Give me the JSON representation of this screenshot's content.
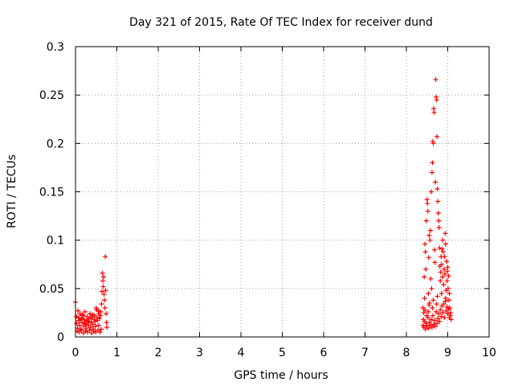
{
  "chart_data": {
    "type": "scatter",
    "title": "Day 321 of 2015, Rate Of TEC Index for receiver dund",
    "xlabel": "GPS time / hours",
    "ylabel": "ROTI / TECUs",
    "xlim": [
      0,
      10
    ],
    "ylim": [
      0,
      0.3
    ],
    "x_ticks": [
      0,
      1,
      2,
      3,
      4,
      5,
      6,
      7,
      8,
      9,
      10
    ],
    "x_tick_labels": [
      "0",
      "1",
      "2",
      "3",
      "4",
      "5",
      "6",
      "7",
      "8",
      "9",
      "10"
    ],
    "y_ticks": [
      0,
      0.05,
      0.1,
      0.15,
      0.2,
      0.25,
      0.3
    ],
    "y_tick_labels": [
      "0",
      "0.05",
      "0.1",
      "0.15",
      "0.2",
      "0.25",
      "0.3"
    ],
    "grid": true,
    "marker": "+",
    "color": "#ff0000",
    "series": [
      {
        "name": "ROTI",
        "points": [
          [
            0.0,
            0.036
          ],
          [
            0.02,
            0.021
          ],
          [
            0.03,
            0.014
          ],
          [
            0.05,
            0.009
          ],
          [
            0.06,
            0.027
          ],
          [
            0.08,
            0.017
          ],
          [
            0.1,
            0.012
          ],
          [
            0.11,
            0.024
          ],
          [
            0.13,
            0.008
          ],
          [
            0.15,
            0.019
          ],
          [
            0.16,
            0.015
          ],
          [
            0.18,
            0.022
          ],
          [
            0.2,
            0.011
          ],
          [
            0.21,
            0.018
          ],
          [
            0.23,
            0.026
          ],
          [
            0.25,
            0.013
          ],
          [
            0.26,
            0.009
          ],
          [
            0.28,
            0.021
          ],
          [
            0.3,
            0.016
          ],
          [
            0.31,
            0.012
          ],
          [
            0.33,
            0.019
          ],
          [
            0.35,
            0.024
          ],
          [
            0.36,
            0.01
          ],
          [
            0.38,
            0.015
          ],
          [
            0.4,
            0.02
          ],
          [
            0.41,
            0.013
          ],
          [
            0.43,
            0.008
          ],
          [
            0.45,
            0.018
          ],
          [
            0.46,
            0.022
          ],
          [
            0.48,
            0.011
          ],
          [
            0.5,
            0.03
          ],
          [
            0.51,
            0.028
          ],
          [
            0.53,
            0.017
          ],
          [
            0.55,
            0.027
          ],
          [
            0.56,
            0.012
          ],
          [
            0.58,
            0.019
          ],
          [
            0.6,
            0.022
          ],
          [
            0.61,
            0.026
          ],
          [
            0.63,
            0.034
          ],
          [
            0.64,
            0.047
          ],
          [
            0.65,
            0.066
          ],
          [
            0.66,
            0.058
          ],
          [
            0.67,
            0.052
          ],
          [
            0.68,
            0.062
          ],
          [
            0.69,
            0.044
          ],
          [
            0.7,
            0.038
          ],
          [
            0.71,
            0.03
          ],
          [
            0.72,
            0.083
          ],
          [
            0.73,
            0.048
          ],
          [
            0.74,
            0.024
          ],
          [
            0.75,
            0.015
          ],
          [
            0.76,
            0.01
          ],
          [
            0.04,
            0.006
          ],
          [
            0.09,
            0.005
          ],
          [
            0.14,
            0.007
          ],
          [
            0.19,
            0.004
          ],
          [
            0.24,
            0.006
          ],
          [
            0.29,
            0.005
          ],
          [
            0.34,
            0.007
          ],
          [
            0.39,
            0.004
          ],
          [
            0.44,
            0.006
          ],
          [
            0.49,
            0.005
          ],
          [
            0.54,
            0.007
          ],
          [
            0.59,
            0.005
          ],
          [
            0.62,
            0.008
          ],
          [
            0.07,
            0.02
          ],
          [
            0.17,
            0.023
          ],
          [
            0.27,
            0.017
          ],
          [
            0.37,
            0.02
          ],
          [
            0.47,
            0.016
          ],
          [
            0.57,
            0.024
          ],
          [
            0.12,
            0.018
          ],
          [
            0.22,
            0.014
          ],
          [
            0.32,
            0.016
          ],
          [
            0.42,
            0.023
          ],
          [
            0.52,
            0.02
          ],
          [
            8.4,
            0.03
          ],
          [
            8.41,
            0.018
          ],
          [
            8.42,
            0.025
          ],
          [
            8.43,
            0.062
          ],
          [
            8.44,
            0.04
          ],
          [
            8.45,
            0.096
          ],
          [
            8.46,
            0.088
          ],
          [
            8.47,
            0.07
          ],
          [
            8.48,
            0.12
          ],
          [
            8.49,
            0.022
          ],
          [
            8.5,
            0.142
          ],
          [
            8.51,
            0.138
          ],
          [
            8.52,
            0.13
          ],
          [
            8.53,
            0.045
          ],
          [
            8.54,
            0.082
          ],
          [
            8.55,
            0.105
          ],
          [
            8.56,
            0.035
          ],
          [
            8.57,
            0.1
          ],
          [
            8.58,
            0.11
          ],
          [
            8.59,
            0.06
          ],
          [
            8.6,
            0.15
          ],
          [
            8.61,
            0.05
          ],
          [
            8.62,
            0.17
          ],
          [
            8.63,
            0.18
          ],
          [
            8.64,
            0.202
          ],
          [
            8.65,
            0.2
          ],
          [
            8.66,
            0.236
          ],
          [
            8.67,
            0.232
          ],
          [
            8.68,
            0.09
          ],
          [
            8.69,
            0.077
          ],
          [
            8.7,
            0.16
          ],
          [
            8.71,
            0.266
          ],
          [
            8.72,
            0.248
          ],
          [
            8.73,
            0.245
          ],
          [
            8.74,
            0.207
          ],
          [
            8.75,
            0.153
          ],
          [
            8.76,
            0.14
          ],
          [
            8.77,
            0.128
          ],
          [
            8.78,
            0.12
          ],
          [
            8.79,
            0.113
          ],
          [
            8.8,
            0.092
          ],
          [
            8.81,
            0.073
          ],
          [
            8.82,
            0.058
          ],
          [
            8.83,
            0.067
          ],
          [
            8.84,
            0.083
          ],
          [
            8.85,
            0.075
          ],
          [
            8.86,
            0.091
          ],
          [
            8.87,
            0.062
          ],
          [
            8.88,
            0.1
          ],
          [
            8.89,
            0.088
          ],
          [
            8.9,
            0.054
          ],
          [
            8.91,
            0.07
          ],
          [
            8.92,
            0.083
          ],
          [
            8.93,
            0.065
          ],
          [
            8.94,
            0.107
          ],
          [
            8.95,
            0.096
          ],
          [
            8.96,
            0.048
          ],
          [
            8.97,
            0.078
          ],
          [
            8.98,
            0.058
          ],
          [
            8.99,
            0.068
          ],
          [
            9.0,
            0.072
          ],
          [
            9.01,
            0.05
          ],
          [
            9.02,
            0.063
          ],
          [
            9.03,
            0.038
          ],
          [
            9.04,
            0.045
          ],
          [
            9.05,
            0.03
          ],
          [
            9.06,
            0.022
          ],
          [
            9.07,
            0.025
          ],
          [
            9.08,
            0.018
          ],
          [
            8.4,
            0.012
          ],
          [
            8.42,
            0.01
          ],
          [
            8.44,
            0.016
          ],
          [
            8.46,
            0.008
          ],
          [
            8.48,
            0.014
          ],
          [
            8.5,
            0.011
          ],
          [
            8.52,
            0.02
          ],
          [
            8.54,
            0.009
          ],
          [
            8.56,
            0.015
          ],
          [
            8.58,
            0.012
          ],
          [
            8.6,
            0.018
          ],
          [
            8.62,
            0.01
          ],
          [
            8.64,
            0.022
          ],
          [
            8.66,
            0.013
          ],
          [
            8.68,
            0.017
          ],
          [
            8.7,
            0.011
          ],
          [
            8.72,
            0.026
          ],
          [
            8.74,
            0.014
          ],
          [
            8.76,
            0.019
          ],
          [
            8.78,
            0.024
          ],
          [
            8.8,
            0.016
          ],
          [
            8.82,
            0.028
          ],
          [
            8.84,
            0.021
          ],
          [
            8.86,
            0.032
          ],
          [
            8.88,
            0.025
          ],
          [
            8.9,
            0.034
          ],
          [
            8.92,
            0.02
          ],
          [
            8.94,
            0.037
          ],
          [
            8.96,
            0.027
          ],
          [
            8.98,
            0.031
          ],
          [
            9.0,
            0.024
          ],
          [
            9.02,
            0.029
          ],
          [
            9.04,
            0.02
          ],
          [
            8.45,
            0.028
          ],
          [
            8.55,
            0.033
          ],
          [
            8.65,
            0.038
          ],
          [
            8.75,
            0.042
          ],
          [
            8.85,
            0.045
          ],
          [
            8.95,
            0.04
          ],
          [
            8.53,
            0.026
          ],
          [
            8.63,
            0.03
          ],
          [
            8.73,
            0.034
          ]
        ]
      }
    ]
  }
}
